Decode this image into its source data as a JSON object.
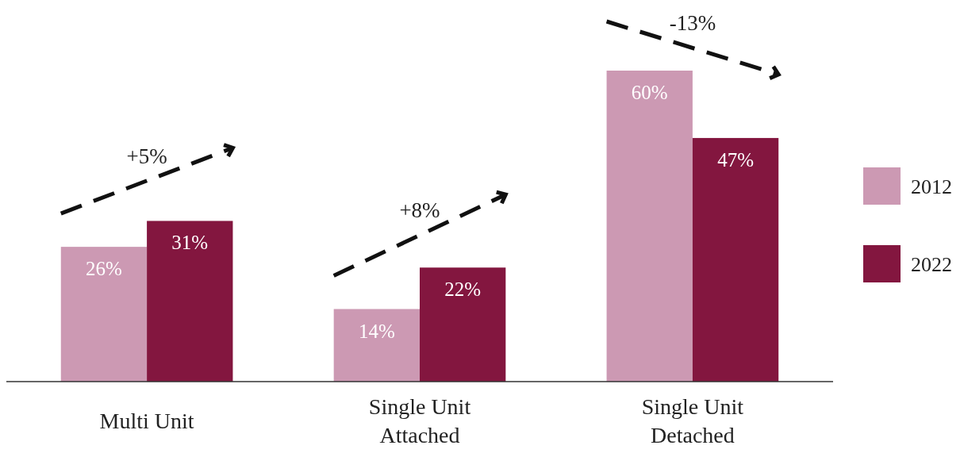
{
  "chart_data": {
    "type": "bar",
    "categories": [
      "Multi Unit",
      "Single Unit Attached",
      "Single Unit Detached"
    ],
    "series": [
      {
        "name": "2012",
        "color": "#cc99b3",
        "values": [
          26,
          14,
          60
        ],
        "value_labels": [
          "26%",
          "14%",
          "60%"
        ]
      },
      {
        "name": "2022",
        "color": "#83163f",
        "values": [
          31,
          22,
          47
        ],
        "value_labels": [
          "31%",
          "22%",
          "47%"
        ]
      }
    ],
    "legend": "right",
    "annotations": [
      "+5%",
      "+8%",
      "-13%"
    ]
  }
}
